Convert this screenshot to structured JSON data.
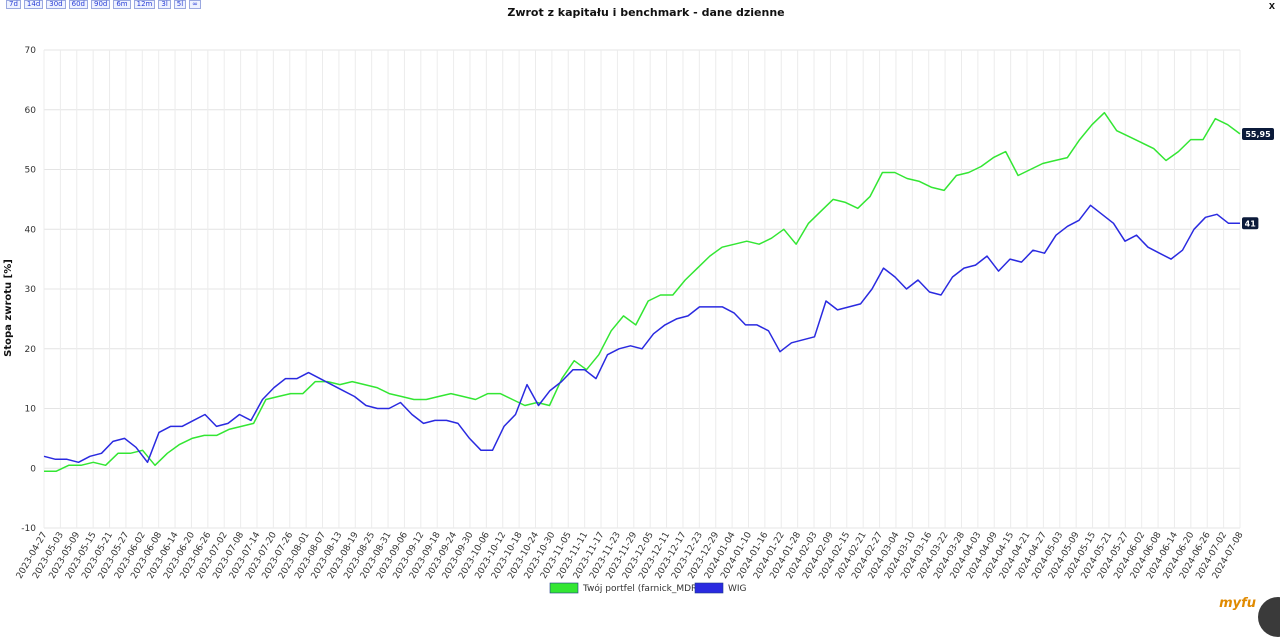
{
  "range_buttons": [
    "7d",
    "14d",
    "30d",
    "60d",
    "90d",
    "6m",
    "12m",
    "3l",
    "5l",
    "∞"
  ],
  "close_label": "x",
  "logo_text": "myfu",
  "chart_data": {
    "type": "line",
    "title": "Zwrot z kapitału i benchmark - dane dzienne",
    "xlabel": "",
    "ylabel": "Stopa zwrotu [%]",
    "ylim": [
      -10,
      70
    ],
    "yticks": [
      -10,
      0,
      10,
      20,
      30,
      40,
      50,
      60,
      70
    ],
    "grid": true,
    "legend_position": "bottom-center",
    "x_tick_labels": [
      "2023-04-27",
      "2023-05-03",
      "2023-05-09",
      "2023-05-15",
      "2023-05-21",
      "2023-05-27",
      "2023-06-02",
      "2023-06-08",
      "2023-06-14",
      "2023-06-20",
      "2023-06-26",
      "2023-07-02",
      "2023-07-08",
      "2023-07-14",
      "2023-07-20",
      "2023-07-26",
      "2023-08-01",
      "2023-08-07",
      "2023-08-13",
      "2023-08-19",
      "2023-08-25",
      "2023-08-31",
      "2023-09-06",
      "2023-09-12",
      "2023-09-18",
      "2023-09-24",
      "2023-09-30",
      "2023-10-06",
      "2023-10-12",
      "2023-10-18",
      "2023-10-24",
      "2023-10-30",
      "2023-11-05",
      "2023-11-11",
      "2023-11-17",
      "2023-11-23",
      "2023-11-29",
      "2023-12-05",
      "2023-12-11",
      "2023-12-17",
      "2023-12-23",
      "2023-12-29",
      "2024-01-04",
      "2024-01-10",
      "2024-01-16",
      "2024-01-22",
      "2024-01-28",
      "2024-02-03",
      "2024-02-09",
      "2024-02-15",
      "2024-02-21",
      "2024-02-27",
      "2024-03-04",
      "2024-03-10",
      "2024-03-16",
      "2024-03-22",
      "2024-03-28",
      "2024-04-03",
      "2024-04-09",
      "2024-04-15",
      "2024-04-21",
      "2024-04-27",
      "2024-05-03",
      "2024-05-09",
      "2024-05-15",
      "2024-05-21",
      "2024-05-27",
      "2024-06-02",
      "2024-06-08",
      "2024-06-14",
      "2024-06-20",
      "2024-06-26",
      "2024-07-02",
      "2024-07-08"
    ],
    "series": [
      {
        "name": "Twój portfel (farnick_MDRC)",
        "color": "#33e633",
        "end_label": "55,95",
        "values": [
          -0.5,
          -0.5,
          0.5,
          0.5,
          1,
          0.5,
          2.5,
          2.5,
          3,
          0.5,
          2.5,
          4,
          5,
          5.5,
          5.5,
          6.5,
          7,
          7.5,
          11.5,
          12,
          12.5,
          12.5,
          14.5,
          14.5,
          14,
          14.5,
          14,
          13.5,
          12.5,
          12,
          11.5,
          11.5,
          12,
          12.5,
          12,
          11.5,
          12.5,
          12.5,
          11.5,
          10.5,
          11,
          10.5,
          15,
          18,
          16.5,
          19,
          23,
          25.5,
          24,
          28,
          29,
          29,
          31.5,
          33.5,
          35.5,
          37,
          37.5,
          38,
          37.5,
          38.5,
          40,
          37.5,
          41,
          43,
          45,
          44.5,
          43.5,
          45.5,
          49.5,
          49.5,
          48.5,
          48,
          47,
          46.5,
          49,
          49.5,
          50.5,
          52,
          53,
          49,
          50,
          51,
          51.5,
          52,
          55,
          57.5,
          59.5,
          56.5,
          55.5,
          54.5,
          53.5,
          51.5,
          53,
          55,
          55,
          58.5,
          57.5,
          55.95
        ]
      },
      {
        "name": "WIG",
        "color": "#2a2ae0",
        "end_label": "41",
        "values": [
          2,
          1.5,
          1.5,
          1,
          2,
          2.5,
          4.5,
          5,
          3.5,
          1,
          6,
          7,
          7,
          8,
          9,
          7,
          7.5,
          9,
          8,
          11.5,
          13.5,
          15,
          15,
          16,
          15,
          14,
          13,
          12,
          10.5,
          10,
          10,
          11,
          9,
          7.5,
          8,
          8,
          7.5,
          5,
          3,
          3,
          7,
          9,
          14,
          10.5,
          13,
          14.5,
          16.5,
          16.5,
          15,
          19,
          20,
          20.5,
          20,
          22.5,
          24,
          25,
          25.5,
          27,
          27,
          27,
          26,
          24,
          24,
          23,
          19.5,
          21,
          21.5,
          22,
          28,
          26.5,
          27,
          27.5,
          30,
          33.5,
          32,
          30,
          31.5,
          29.5,
          29,
          32,
          33.5,
          34,
          35.5,
          33,
          35,
          34.5,
          36.5,
          36,
          39,
          40.5,
          41.5,
          44,
          42.5,
          41,
          38,
          39,
          37,
          36,
          35,
          36.5,
          40,
          42,
          42.5,
          41,
          41
        ]
      }
    ]
  }
}
